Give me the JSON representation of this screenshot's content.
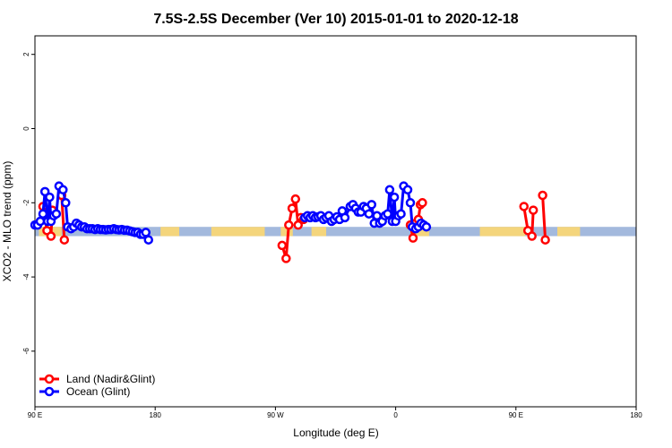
{
  "chart_data": {
    "type": "line",
    "title": "7.5S-2.5S December (Ver 10)   2015-01-01 to 2020-12-18",
    "xlabel": "Longitude (deg E)",
    "ylabel": "XCO2 - MLO trend (ppm)",
    "xlim": [
      90,
      450
    ],
    "ylim": [
      -7.5,
      2.5
    ],
    "xticks": [
      {
        "value": 90,
        "label": "90 E"
      },
      {
        "value": 180,
        "label": "180"
      },
      {
        "value": 270,
        "label": "90 W"
      },
      {
        "value": 360,
        "label": "0"
      },
      {
        "value": 450,
        "label": "90 E"
      },
      {
        "value": 540,
        "label": "180"
      }
    ],
    "yticks": [
      {
        "value": 2,
        "label": "2"
      },
      {
        "value": 0,
        "label": "0"
      },
      {
        "value": -2,
        "label": "-2"
      },
      {
        "value": -4,
        "label": "-4"
      },
      {
        "value": -6,
        "label": "-6"
      }
    ],
    "grid": false,
    "legend_position": "bottom-left",
    "landmask_band": [
      -2.65,
      -2.9
    ],
    "land_segments": [
      [
        93,
        110
      ],
      [
        184,
        198
      ],
      [
        222,
        262
      ],
      [
        274,
        283
      ],
      [
        297,
        308
      ],
      [
        371,
        385
      ],
      [
        423,
        457
      ],
      [
        481,
        498
      ]
    ],
    "series": [
      {
        "name": "Land (Nadir&Glint)",
        "color": "#ff0000",
        "segments": [
          [
            [
              96,
              -2.1
            ],
            [
              99,
              -2.75
            ],
            [
              102,
              -2.9
            ],
            [
              103,
              -2.2
            ]
          ],
          [
            [
              110,
              -1.8
            ],
            [
              112,
              -3.0
            ]
          ],
          [
            [
              275,
              -3.15
            ],
            [
              278,
              -3.5
            ],
            [
              280,
              -2.6
            ],
            [
              282.5,
              -2.15
            ],
            [
              285,
              -1.9
            ],
            [
              287,
              -2.6
            ],
            [
              289,
              -2.4
            ],
            [
              291,
              -2.45
            ]
          ],
          [
            [
              371,
              -2.6
            ],
            [
              373,
              -2.95
            ],
            [
              375,
              -2.55
            ],
            [
              377,
              -2.45
            ],
            [
              378.5,
              -2.05
            ],
            [
              380,
              -2.0
            ]
          ],
          [
            [
              456,
              -2.1
            ],
            [
              459,
              -2.75
            ],
            [
              462,
              -2.9
            ],
            [
              463,
              -2.2
            ]
          ],
          [
            [
              470,
              -1.8
            ],
            [
              472,
              -3.0
            ]
          ]
        ]
      },
      {
        "name": "Ocean (Glint)",
        "color": "#0000ff",
        "segments": [
          [
            [
              90,
              -2.6
            ],
            [
              92,
              -2.6
            ],
            [
              94,
              -2.5
            ],
            [
              96,
              -2.3
            ],
            [
              97.5,
              -1.7
            ],
            [
              99.5,
              -2.5
            ],
            [
              101,
              -1.85
            ],
            [
              102,
              -2.5
            ],
            [
              104,
              -2.35
            ],
            [
              106,
              -2.3
            ],
            [
              108,
              -1.55
            ],
            [
              111,
              -1.65
            ],
            [
              113,
              -2.0
            ],
            [
              114.5,
              -2.65
            ],
            [
              117,
              -2.7
            ],
            [
              119,
              -2.65
            ],
            [
              121,
              -2.55
            ],
            [
              123,
              -2.6
            ],
            [
              125,
              -2.65
            ],
            [
              127,
              -2.65
            ],
            [
              129,
              -2.7
            ],
            [
              131,
              -2.7
            ],
            [
              133,
              -2.7
            ],
            [
              135,
              -2.72
            ],
            [
              137,
              -2.7
            ],
            [
              139,
              -2.72
            ],
            [
              141,
              -2.72
            ],
            [
              143,
              -2.73
            ],
            [
              145,
              -2.72
            ],
            [
              147,
              -2.72
            ],
            [
              149,
              -2.7
            ],
            [
              151,
              -2.72
            ],
            [
              153,
              -2.73
            ],
            [
              155,
              -2.72
            ],
            [
              157,
              -2.74
            ],
            [
              159,
              -2.74
            ],
            [
              161,
              -2.76
            ],
            [
              163,
              -2.78
            ],
            [
              165,
              -2.8
            ],
            [
              167,
              -2.8
            ],
            [
              169,
              -2.85
            ],
            [
              171,
              -2.85
            ],
            [
              173,
              -2.8
            ],
            [
              175,
              -3.0
            ]
          ],
          [
            [
              292,
              -2.4
            ],
            [
              294,
              -2.35
            ],
            [
              296,
              -2.4
            ],
            [
              298,
              -2.35
            ],
            [
              300,
              -2.4
            ],
            [
              302,
              -2.38
            ],
            [
              304,
              -2.35
            ],
            [
              306,
              -2.45
            ],
            [
              308,
              -2.4
            ],
            [
              310,
              -2.35
            ],
            [
              312,
              -2.5
            ],
            [
              314,
              -2.45
            ],
            [
              316,
              -2.38
            ],
            [
              318,
              -2.45
            ],
            [
              320,
              -2.22
            ],
            [
              322,
              -2.4
            ],
            [
              326,
              -2.1
            ],
            [
              328,
              -2.05
            ],
            [
              330,
              -2.15
            ],
            [
              332,
              -2.25
            ],
            [
              334,
              -2.25
            ],
            [
              336,
              -2.1
            ],
            [
              338,
              -2.15
            ],
            [
              340,
              -2.3
            ],
            [
              342,
              -2.05
            ],
            [
              344,
              -2.55
            ],
            [
              346,
              -2.35
            ],
            [
              348,
              -2.55
            ],
            [
              350,
              -2.5
            ],
            [
              352,
              -2.35
            ],
            [
              354,
              -2.3
            ],
            [
              355.5,
              -1.65
            ],
            [
              357.5,
              -2.5
            ],
            [
              359,
              -1.85
            ],
            [
              360,
              -2.5
            ],
            [
              362,
              -2.35
            ],
            [
              364,
              -2.3
            ],
            [
              366,
              -1.55
            ],
            [
              369,
              -1.65
            ],
            [
              371,
              -2.0
            ],
            [
              372.5,
              -2.65
            ],
            [
              375,
              -2.7
            ],
            [
              377,
              -2.65
            ],
            [
              379,
              -2.55
            ],
            [
              381,
              -2.6
            ],
            [
              383,
              -2.65
            ]
          ]
        ]
      }
    ]
  }
}
